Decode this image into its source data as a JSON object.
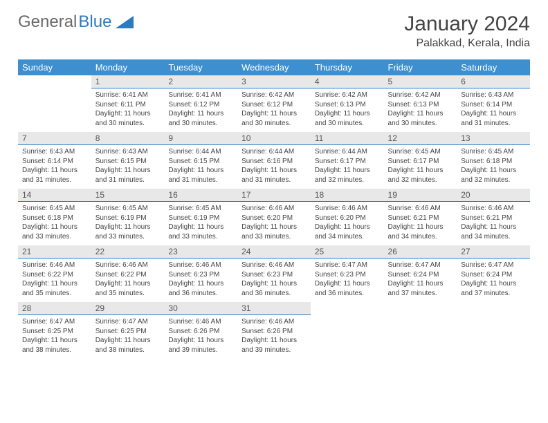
{
  "brand": {
    "part1": "General",
    "part2": "Blue"
  },
  "title": "January 2024",
  "location": "Palakkad, Kerala, India",
  "colors": {
    "header_bg": "#3d8fcf",
    "header_text": "#ffffff",
    "daynum_bg": "#e8e8e8",
    "daynum_border": "#2b7bbf",
    "body_text": "#444444",
    "brand_gray": "#6a6a6a",
    "brand_blue": "#2b7bbf"
  },
  "weekdays": [
    "Sunday",
    "Monday",
    "Tuesday",
    "Wednesday",
    "Thursday",
    "Friday",
    "Saturday"
  ],
  "weeks": [
    [
      null,
      {
        "n": "1",
        "sr": "6:41 AM",
        "ss": "6:11 PM",
        "dl": "11 hours and 30 minutes."
      },
      {
        "n": "2",
        "sr": "6:41 AM",
        "ss": "6:12 PM",
        "dl": "11 hours and 30 minutes."
      },
      {
        "n": "3",
        "sr": "6:42 AM",
        "ss": "6:12 PM",
        "dl": "11 hours and 30 minutes."
      },
      {
        "n": "4",
        "sr": "6:42 AM",
        "ss": "6:13 PM",
        "dl": "11 hours and 30 minutes."
      },
      {
        "n": "5",
        "sr": "6:42 AM",
        "ss": "6:13 PM",
        "dl": "11 hours and 30 minutes."
      },
      {
        "n": "6",
        "sr": "6:43 AM",
        "ss": "6:14 PM",
        "dl": "11 hours and 31 minutes."
      }
    ],
    [
      {
        "n": "7",
        "sr": "6:43 AM",
        "ss": "6:14 PM",
        "dl": "11 hours and 31 minutes."
      },
      {
        "n": "8",
        "sr": "6:43 AM",
        "ss": "6:15 PM",
        "dl": "11 hours and 31 minutes."
      },
      {
        "n": "9",
        "sr": "6:44 AM",
        "ss": "6:15 PM",
        "dl": "11 hours and 31 minutes."
      },
      {
        "n": "10",
        "sr": "6:44 AM",
        "ss": "6:16 PM",
        "dl": "11 hours and 31 minutes."
      },
      {
        "n": "11",
        "sr": "6:44 AM",
        "ss": "6:17 PM",
        "dl": "11 hours and 32 minutes."
      },
      {
        "n": "12",
        "sr": "6:45 AM",
        "ss": "6:17 PM",
        "dl": "11 hours and 32 minutes."
      },
      {
        "n": "13",
        "sr": "6:45 AM",
        "ss": "6:18 PM",
        "dl": "11 hours and 32 minutes."
      }
    ],
    [
      {
        "n": "14",
        "sr": "6:45 AM",
        "ss": "6:18 PM",
        "dl": "11 hours and 33 minutes."
      },
      {
        "n": "15",
        "sr": "6:45 AM",
        "ss": "6:19 PM",
        "dl": "11 hours and 33 minutes."
      },
      {
        "n": "16",
        "sr": "6:45 AM",
        "ss": "6:19 PM",
        "dl": "11 hours and 33 minutes."
      },
      {
        "n": "17",
        "sr": "6:46 AM",
        "ss": "6:20 PM",
        "dl": "11 hours and 33 minutes."
      },
      {
        "n": "18",
        "sr": "6:46 AM",
        "ss": "6:20 PM",
        "dl": "11 hours and 34 minutes."
      },
      {
        "n": "19",
        "sr": "6:46 AM",
        "ss": "6:21 PM",
        "dl": "11 hours and 34 minutes."
      },
      {
        "n": "20",
        "sr": "6:46 AM",
        "ss": "6:21 PM",
        "dl": "11 hours and 34 minutes."
      }
    ],
    [
      {
        "n": "21",
        "sr": "6:46 AM",
        "ss": "6:22 PM",
        "dl": "11 hours and 35 minutes."
      },
      {
        "n": "22",
        "sr": "6:46 AM",
        "ss": "6:22 PM",
        "dl": "11 hours and 35 minutes."
      },
      {
        "n": "23",
        "sr": "6:46 AM",
        "ss": "6:23 PM",
        "dl": "11 hours and 36 minutes."
      },
      {
        "n": "24",
        "sr": "6:46 AM",
        "ss": "6:23 PM",
        "dl": "11 hours and 36 minutes."
      },
      {
        "n": "25",
        "sr": "6:47 AM",
        "ss": "6:23 PM",
        "dl": "11 hours and 36 minutes."
      },
      {
        "n": "26",
        "sr": "6:47 AM",
        "ss": "6:24 PM",
        "dl": "11 hours and 37 minutes."
      },
      {
        "n": "27",
        "sr": "6:47 AM",
        "ss": "6:24 PM",
        "dl": "11 hours and 37 minutes."
      }
    ],
    [
      {
        "n": "28",
        "sr": "6:47 AM",
        "ss": "6:25 PM",
        "dl": "11 hours and 38 minutes."
      },
      {
        "n": "29",
        "sr": "6:47 AM",
        "ss": "6:25 PM",
        "dl": "11 hours and 38 minutes."
      },
      {
        "n": "30",
        "sr": "6:46 AM",
        "ss": "6:26 PM",
        "dl": "11 hours and 39 minutes."
      },
      {
        "n": "31",
        "sr": "6:46 AM",
        "ss": "6:26 PM",
        "dl": "11 hours and 39 minutes."
      },
      null,
      null,
      null
    ]
  ],
  "labels": {
    "sunrise": "Sunrise:",
    "sunset": "Sunset:",
    "daylight": "Daylight:"
  }
}
